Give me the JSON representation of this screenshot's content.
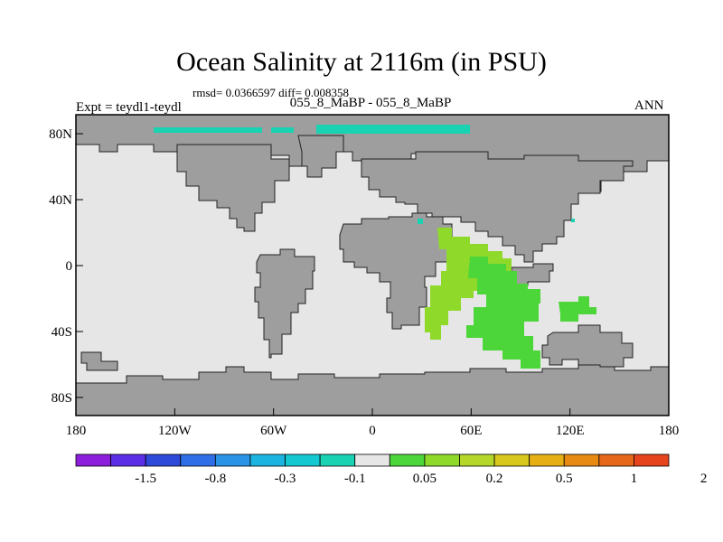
{
  "title": "Ocean Salinity at 2116m (in PSU)",
  "stats": "rmsd= 0.0366597 diff= 0.008358",
  "experiment": "Expt = teydl1-teydl",
  "period": "055_8_MaBP - 055_8_MaBP",
  "season": "ANN",
  "map": {
    "x_ticks": [
      "180",
      "120W",
      "60W",
      "0",
      "60E",
      "120E",
      "180"
    ],
    "y_ticks": [
      "80N",
      "40N",
      "0",
      "40S",
      "80S"
    ],
    "land_color": "#9e9e9e",
    "ocean_neutral_color": "#e6e6e6",
    "coastline_color": "#000000"
  },
  "colorbar": {
    "colors": [
      "#8d1fdc",
      "#5b2fe6",
      "#2e4ad8",
      "#2f6ee6",
      "#2a93e6",
      "#1bb3e0",
      "#14c8d2",
      "#19d2b2",
      "#e6e6e6",
      "#4dd63a",
      "#8fd92b",
      "#b5d72a",
      "#d8c81d",
      "#e6b015",
      "#e68a14",
      "#e6661a",
      "#e6441c"
    ],
    "labels": [
      "-1.5",
      "-0.8",
      "-0.3",
      "-0.1",
      "0.05",
      "0.2",
      "0.5",
      "1",
      "2"
    ]
  }
}
